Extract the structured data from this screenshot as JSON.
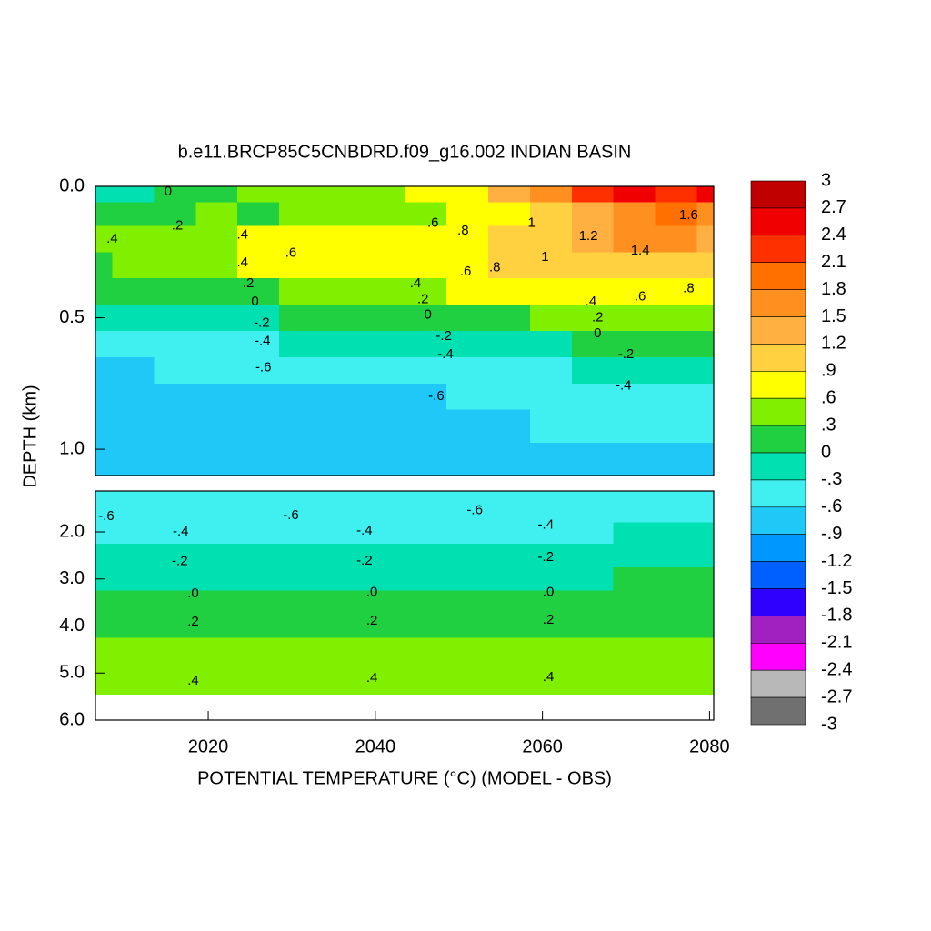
{
  "chart_data": [
    {
      "type": "contour",
      "title": "b.e11.BRCP85C5CNBDRD.f09_g16.002 INDIAN BASIN",
      "ylabel": "DEPTH (km)",
      "xlim": [
        2006.5,
        2080.5
      ],
      "ylim": [
        0,
        1.1
      ],
      "y_reversed": true,
      "yticks": [
        {
          "value": 0,
          "label": "0.0"
        },
        {
          "value": 0.5,
          "label": "0.5"
        },
        {
          "value": 1,
          "label": "1.0"
        }
      ],
      "x": [
        2006,
        2011,
        2016,
        2021,
        2026,
        2031,
        2036,
        2041,
        2046,
        2051,
        2056,
        2061,
        2066,
        2071,
        2076,
        2081
      ],
      "y": [
        0.02,
        0.1,
        0.2,
        0.3,
        0.4,
        0.5,
        0.6,
        0.7,
        0.8,
        0.9,
        1.05
      ],
      "z": [
        [
          -0.3,
          -0.1,
          0.0,
          0.2,
          0.3,
          0.4,
          0.3,
          0.4,
          0.6,
          0.8,
          1.2,
          1.6,
          2.1,
          2.4,
          2.2,
          2.4
        ],
        [
          0.1,
          0.0,
          0.2,
          0.3,
          0.2,
          0.3,
          0.5,
          0.4,
          0.5,
          0.6,
          0.8,
          1.0,
          1.4,
          1.7,
          1.8,
          1.6
        ],
        [
          0.4,
          0.3,
          0.4,
          0.5,
          0.6,
          0.7,
          0.7,
          0.7,
          0.7,
          0.8,
          1.0,
          1.1,
          1.3,
          1.5,
          1.5,
          1.4
        ],
        [
          0.2,
          0.3,
          0.4,
          0.5,
          0.6,
          0.6,
          0.6,
          0.7,
          0.7,
          0.8,
          0.9,
          1.0,
          1.0,
          1.0,
          1.0,
          1.0
        ],
        [
          0.0,
          0.1,
          0.1,
          0.2,
          0.2,
          0.3,
          0.3,
          0.4,
          0.5,
          0.6,
          0.6,
          0.7,
          0.7,
          0.8,
          0.8,
          0.8
        ],
        [
          -0.2,
          -0.2,
          -0.2,
          -0.1,
          -0.1,
          0.0,
          0.0,
          0.1,
          0.1,
          0.2,
          0.2,
          0.3,
          0.3,
          0.4,
          0.4,
          0.4
        ],
        [
          -0.5,
          -0.5,
          -0.4,
          -0.4,
          -0.4,
          -0.3,
          -0.3,
          -0.3,
          -0.2,
          -0.2,
          -0.1,
          -0.1,
          0.0,
          0.0,
          0.0,
          0.1
        ],
        [
          -0.7,
          -0.7,
          -0.6,
          -0.6,
          -0.6,
          -0.6,
          -0.6,
          -0.5,
          -0.5,
          -0.5,
          -0.4,
          -0.4,
          -0.3,
          -0.3,
          -0.3,
          -0.3
        ],
        [
          -0.8,
          -0.8,
          -0.8,
          -0.7,
          -0.7,
          -0.7,
          -0.7,
          -0.7,
          -0.7,
          -0.6,
          -0.6,
          -0.6,
          -0.6,
          -0.5,
          -0.5,
          -0.5
        ],
        [
          -0.9,
          -0.9,
          -0.8,
          -0.9,
          -0.8,
          -0.7,
          -0.7,
          -0.7,
          -0.7,
          -0.7,
          -0.7,
          -0.6,
          -0.6,
          -0.6,
          -0.6,
          -0.6
        ],
        [
          -0.8,
          -0.8,
          -0.8,
          -0.8,
          -0.7,
          -0.7,
          -0.7,
          -0.7,
          -0.7,
          -0.8,
          -0.8,
          -0.8,
          -0.7,
          -0.7,
          -0.7,
          -0.7
        ]
      ],
      "contour_labels": [
        {
          "x": 2008.5,
          "y": 0.2,
          "label": ".4"
        },
        {
          "x": 2015.2,
          "y": 0.02,
          "label": "0"
        },
        {
          "x": 2016.3,
          "y": 0.15,
          "label": ".2"
        },
        {
          "x": 2024.1,
          "y": 0.185,
          "label": ".4"
        },
        {
          "x": 2029.9,
          "y": 0.255,
          "label": ".6"
        },
        {
          "x": 2024.1,
          "y": 0.29,
          "label": ".4"
        },
        {
          "x": 2024.8,
          "y": 0.37,
          "label": ".2"
        },
        {
          "x": 2025.6,
          "y": 0.44,
          "label": "0"
        },
        {
          "x": 2026.4,
          "y": 0.52,
          "label": "-.2"
        },
        {
          "x": 2026.5,
          "y": 0.59,
          "label": "-.4"
        },
        {
          "x": 2026.6,
          "y": 0.69,
          "label": "-.6"
        },
        {
          "x": 2046.9,
          "y": 0.14,
          "label": ".6"
        },
        {
          "x": 2050.5,
          "y": 0.17,
          "label": ".8"
        },
        {
          "x": 2058.7,
          "y": 0.14,
          "label": "1"
        },
        {
          "x": 2065.5,
          "y": 0.19,
          "label": "1.2"
        },
        {
          "x": 2077.5,
          "y": 0.11,
          "label": "1.6"
        },
        {
          "x": 2071.7,
          "y": 0.245,
          "label": "1.4"
        },
        {
          "x": 2060.3,
          "y": 0.27,
          "label": "1"
        },
        {
          "x": 2054.3,
          "y": 0.31,
          "label": ".8"
        },
        {
          "x": 2050.8,
          "y": 0.325,
          "label": ".6"
        },
        {
          "x": 2077.5,
          "y": 0.39,
          "label": ".8"
        },
        {
          "x": 2071.7,
          "y": 0.42,
          "label": ".6"
        },
        {
          "x": 2044.8,
          "y": 0.37,
          "label": ".4"
        },
        {
          "x": 2045.7,
          "y": 0.43,
          "label": ".2"
        },
        {
          "x": 2046.3,
          "y": 0.49,
          "label": "0"
        },
        {
          "x": 2048.2,
          "y": 0.57,
          "label": "-.2"
        },
        {
          "x": 2048.4,
          "y": 0.64,
          "label": "-.4"
        },
        {
          "x": 2047.3,
          "y": 0.8,
          "label": "-.6"
        },
        {
          "x": 2065.8,
          "y": 0.44,
          "label": ".4"
        },
        {
          "x": 2066.6,
          "y": 0.5,
          "label": ".2"
        },
        {
          "x": 2066.6,
          "y": 0.56,
          "label": "0"
        },
        {
          "x": 2070.0,
          "y": 0.64,
          "label": "-.2"
        },
        {
          "x": 2069.7,
          "y": 0.76,
          "label": "-.4"
        }
      ]
    },
    {
      "type": "contour",
      "xlabel": "POTENTIAL TEMPERATURE (°C) (MODEL - OBS)",
      "xlim": [
        2006.5,
        2080.5
      ],
      "ylim": [
        1.13,
        6.0
      ],
      "y_reversed": true,
      "xticks": [
        2020,
        2040,
        2060,
        2080
      ],
      "yticks": [
        {
          "value": 2,
          "label": "2.0"
        },
        {
          "value": 3,
          "label": "3.0"
        },
        {
          "value": 4,
          "label": "4.0"
        },
        {
          "value": 5,
          "label": "5.0"
        },
        {
          "value": 6,
          "label": "6.0"
        }
      ],
      "x": [
        2006,
        2031,
        2056,
        2081
      ],
      "y": [
        1.2,
        1.6,
        2.0,
        2.5,
        3.0,
        3.5,
        4.0,
        4.5,
        5.0,
        5.3
      ],
      "z": [
        [
          -0.6,
          -0.6,
          -0.6,
          -0.6
        ],
        [
          -0.6,
          -0.6,
          -0.5,
          -0.5
        ],
        [
          -0.4,
          -0.4,
          -0.4,
          -0.3
        ],
        [
          -0.2,
          -0.2,
          -0.2,
          -0.2
        ],
        [
          -0.1,
          -0.1,
          -0.1,
          0.0
        ],
        [
          0.0,
          0.0,
          0.1,
          0.1
        ],
        [
          0.2,
          0.2,
          0.2,
          0.2
        ],
        [
          0.3,
          0.3,
          0.3,
          0.3
        ],
        [
          0.4,
          0.4,
          0.4,
          0.4
        ],
        [
          0.5,
          0.5,
          0.5,
          0.5
        ]
      ],
      "contour_labels": [
        {
          "x": 2007.8,
          "y": 1.67,
          "label": "-.6"
        },
        {
          "x": 2029.9,
          "y": 1.65,
          "label": "-.6"
        },
        {
          "x": 2051.9,
          "y": 1.55,
          "label": "-.6"
        },
        {
          "x": 2016.7,
          "y": 2.0,
          "label": "-.4"
        },
        {
          "x": 2038.7,
          "y": 1.98,
          "label": "-.4"
        },
        {
          "x": 2060.4,
          "y": 1.86,
          "label": "-.4"
        },
        {
          "x": 2016.6,
          "y": 2.63,
          "label": "-.2"
        },
        {
          "x": 2038.7,
          "y": 2.62,
          "label": "-.2"
        },
        {
          "x": 2060.4,
          "y": 2.54,
          "label": "-.2"
        },
        {
          "x": 2018.2,
          "y": 3.31,
          "label": ".0"
        },
        {
          "x": 2039.6,
          "y": 3.29,
          "label": ".0"
        },
        {
          "x": 2060.7,
          "y": 3.29,
          "label": ".0"
        },
        {
          "x": 2018.2,
          "y": 3.91,
          "label": ".2"
        },
        {
          "x": 2039.6,
          "y": 3.89,
          "label": ".2"
        },
        {
          "x": 2060.7,
          "y": 3.87,
          "label": ".2"
        },
        {
          "x": 2018.2,
          "y": 5.17,
          "label": ".4"
        },
        {
          "x": 2039.6,
          "y": 5.11,
          "label": ".4"
        },
        {
          "x": 2060.7,
          "y": 5.09,
          "label": ".4"
        }
      ]
    },
    {
      "type": "colorbar",
      "ticks": [
        3,
        2.7,
        2.4,
        2.1,
        1.8,
        1.5,
        1.2,
        {
          "value": 0.9,
          "label": ".9"
        },
        {
          "value": 0.6,
          "label": ".6"
        },
        {
          "value": 0.3,
          "label": ".3"
        },
        0,
        {
          "value": -0.3,
          "label": "-.3"
        },
        {
          "value": -0.6,
          "label": "-.6"
        },
        {
          "value": -0.9,
          "label": "-.9"
        },
        -1.2,
        -1.5,
        -1.8,
        -2.1,
        -2.4,
        -2.7,
        -3
      ],
      "colors": [
        "#c00000",
        "#f00000",
        "#ff3000",
        "#ff7000",
        "#ff9020",
        "#ffb040",
        "#ffd040",
        "#ffff00",
        "#80f000",
        "#20d040",
        "#00e0b0",
        "#40f0f0",
        "#20c8f8",
        "#0098ff",
        "#0060ff",
        "#3000ff",
        "#a020c0",
        "#ff00ff",
        "#b8b8b8",
        "#707070"
      ]
    }
  ]
}
